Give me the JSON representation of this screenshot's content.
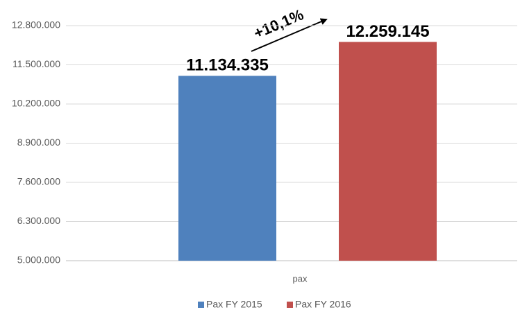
{
  "chart_data": {
    "type": "bar",
    "categories": [
      "pax"
    ],
    "series": [
      {
        "name": "Pax FY 2015",
        "color": "#4f81bd",
        "values": [
          11134335
        ],
        "value_labels": [
          "11.134.335"
        ]
      },
      {
        "name": "Pax FY 2016",
        "color": "#c0504d",
        "values": [
          12259145
        ],
        "value_labels": [
          "12.259.145"
        ]
      }
    ],
    "ylim": [
      5000000,
      12800000
    ],
    "yticks": [
      {
        "value": 5000000,
        "label": "5.000.000"
      },
      {
        "value": 6300000,
        "label": "6.300.000"
      },
      {
        "value": 7600000,
        "label": "7.600.000"
      },
      {
        "value": 8900000,
        "label": "8.900.000"
      },
      {
        "value": 10200000,
        "label": "10.200.000"
      },
      {
        "value": 11500000,
        "label": "11.500.000"
      },
      {
        "value": 12800000,
        "label": "12.800.000"
      }
    ],
    "grid": true,
    "legend": "bottom",
    "annotation": "+10,1%"
  }
}
